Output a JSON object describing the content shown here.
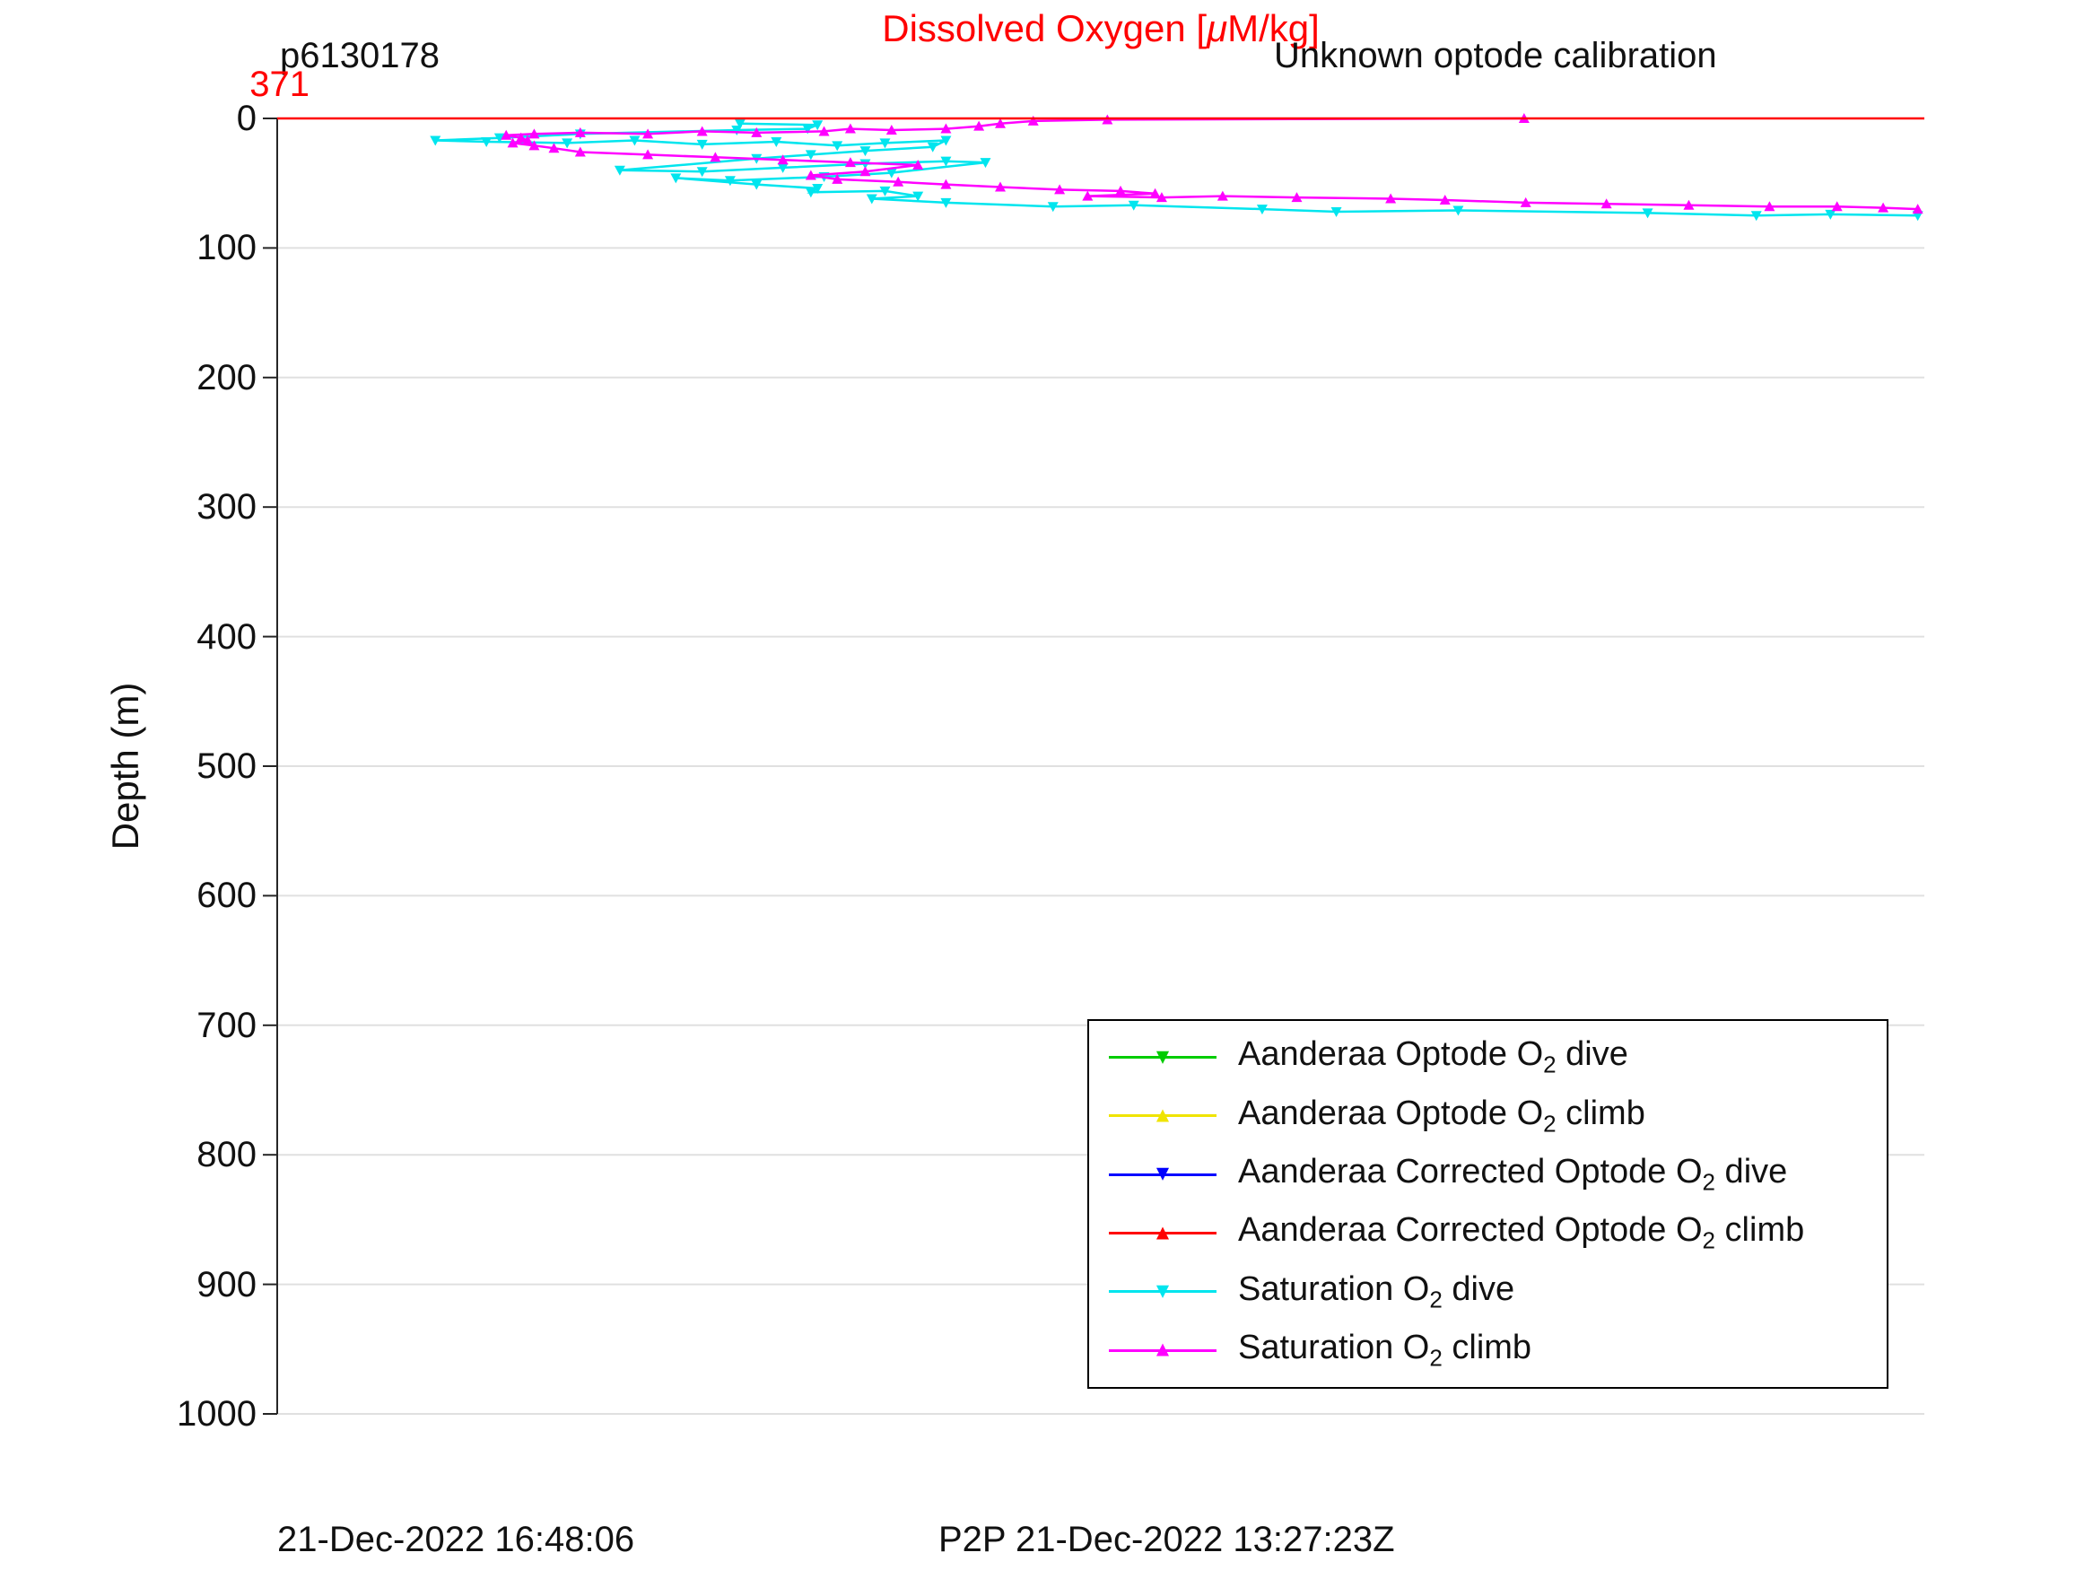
{
  "header": {
    "platform_id": "p6130178",
    "title_pre": "Dissolved Oxygen [",
    "title_mu": "μ",
    "title_post": "M/kg]",
    "calibration_note": "Unknown optode calibration",
    "surface_value_annotation": "371"
  },
  "axes": {
    "ylabel": "Depth (m)",
    "yticks": [
      0,
      100,
      200,
      300,
      400,
      500,
      600,
      700,
      800,
      900,
      1000
    ],
    "ylim": [
      0,
      1000
    ],
    "y_inverted": true,
    "x_tick_labels_visible": false
  },
  "footer": {
    "left_timestamp": "21-Dec-2022 16:48:06",
    "right_timestamp": "P2P 21-Dec-2022 13:27:23Z"
  },
  "colors": {
    "title": "#ff0000",
    "annotation": "#ff0000",
    "grid": "#e0e0e0",
    "axis": "#262626",
    "green": "#00cc00",
    "yellow": "#f0e400",
    "blue": "#0000ff",
    "red": "#ff0000",
    "cyan": "#00e5ee",
    "magenta": "#ff00ff"
  },
  "legend": {
    "entries": [
      {
        "pre": "Aanderaa Optode O",
        "sub": "2",
        "post": " dive",
        "color": "#00cc00",
        "marker": "down"
      },
      {
        "pre": "Aanderaa Optode O",
        "sub": "2",
        "post": " climb",
        "color": "#f0e400",
        "marker": "up"
      },
      {
        "pre": "Aanderaa Corrected Optode O",
        "sub": "2",
        "post": " dive",
        "color": "#0000ff",
        "marker": "down"
      },
      {
        "pre": "Aanderaa Corrected Optode O",
        "sub": "2",
        "post": " climb",
        "color": "#ff0000",
        "marker": "up"
      },
      {
        "pre": "Saturation O",
        "sub": "2",
        "post": " dive",
        "color": "#00e5ee",
        "marker": "down"
      },
      {
        "pre": "Saturation O",
        "sub": "2",
        "post": " climb",
        "color": "#ff00ff",
        "marker": "up"
      }
    ]
  },
  "chart_data": {
    "type": "line",
    "title": "Dissolved Oxygen [μM/kg]",
    "ylabel": "Depth (m)",
    "ylim": [
      0,
      1000
    ],
    "y_inverted": true,
    "grid": "horizontal only",
    "legend_position": "inside bottom-right",
    "x_axis_note": "no x tick labels visible; x stored as fraction of plot width (dissolved oxygen increases to the right); red annotation 371 shown at top-left",
    "series": [
      {
        "name": "Aanderaa Optode O2 dive",
        "color": "#00cc00",
        "marker": "down",
        "points": []
      },
      {
        "name": "Aanderaa Optode O2 climb",
        "color": "#f0e400",
        "marker": "up",
        "points": []
      },
      {
        "name": "Aanderaa Corrected Optode O2 dive",
        "color": "#0000ff",
        "marker": "down",
        "points": []
      },
      {
        "name": "Saturation O2 dive",
        "color": "#00e5ee",
        "marker": "down",
        "points": [
          [
            0.281,
            4
          ],
          [
            0.328,
            5
          ],
          [
            0.322,
            8
          ],
          [
            0.279,
            9
          ],
          [
            0.184,
            12
          ],
          [
            0.135,
            15
          ],
          [
            0.096,
            17
          ],
          [
            0.127,
            18
          ],
          [
            0.176,
            19
          ],
          [
            0.217,
            17
          ],
          [
            0.258,
            20
          ],
          [
            0.303,
            18
          ],
          [
            0.34,
            21
          ],
          [
            0.369,
            19
          ],
          [
            0.406,
            17
          ],
          [
            0.398,
            22
          ],
          [
            0.357,
            25
          ],
          [
            0.324,
            28
          ],
          [
            0.291,
            31
          ],
          [
            0.208,
            40
          ],
          [
            0.258,
            41
          ],
          [
            0.307,
            38
          ],
          [
            0.357,
            35
          ],
          [
            0.406,
            33
          ],
          [
            0.43,
            34
          ],
          [
            0.373,
            42
          ],
          [
            0.332,
            45
          ],
          [
            0.275,
            48
          ],
          [
            0.242,
            46
          ],
          [
            0.291,
            51
          ],
          [
            0.328,
            54
          ],
          [
            0.324,
            57
          ],
          [
            0.369,
            56
          ],
          [
            0.389,
            60
          ],
          [
            0.361,
            62
          ],
          [
            0.406,
            65
          ],
          [
            0.471,
            68
          ],
          [
            0.52,
            67
          ],
          [
            0.598,
            70
          ],
          [
            0.643,
            72
          ],
          [
            0.717,
            71
          ],
          [
            0.832,
            73
          ],
          [
            0.898,
            75
          ],
          [
            0.943,
            74
          ],
          [
            0.996,
            75
          ]
        ]
      },
      {
        "name": "Saturation O2 climb",
        "color": "#ff00ff",
        "marker": "up",
        "points": [
          [
            0.996,
            70
          ],
          [
            0.975,
            69
          ],
          [
            0.947,
            68
          ],
          [
            0.906,
            68
          ],
          [
            0.857,
            67
          ],
          [
            0.807,
            66
          ],
          [
            0.758,
            65
          ],
          [
            0.709,
            63
          ],
          [
            0.676,
            62
          ],
          [
            0.619,
            61
          ],
          [
            0.574,
            60
          ],
          [
            0.537,
            61
          ],
          [
            0.492,
            60
          ],
          [
            0.533,
            58
          ],
          [
            0.512,
            56
          ],
          [
            0.475,
            55
          ],
          [
            0.439,
            53
          ],
          [
            0.406,
            51
          ],
          [
            0.377,
            49
          ],
          [
            0.34,
            47
          ],
          [
            0.324,
            44
          ],
          [
            0.357,
            41
          ],
          [
            0.389,
            36
          ],
          [
            0.348,
            34
          ],
          [
            0.307,
            32
          ],
          [
            0.266,
            30
          ],
          [
            0.225,
            28
          ],
          [
            0.184,
            26
          ],
          [
            0.168,
            23
          ],
          [
            0.156,
            21
          ],
          [
            0.143,
            19
          ],
          [
            0.152,
            17
          ],
          [
            0.148,
            15
          ],
          [
            0.139,
            13
          ],
          [
            0.156,
            12
          ],
          [
            0.184,
            11
          ],
          [
            0.225,
            12
          ],
          [
            0.258,
            10
          ],
          [
            0.291,
            11
          ],
          [
            0.332,
            10
          ],
          [
            0.348,
            8
          ],
          [
            0.373,
            9
          ],
          [
            0.406,
            8
          ],
          [
            0.426,
            6
          ],
          [
            0.439,
            4
          ],
          [
            0.459,
            2
          ],
          [
            0.504,
            1
          ],
          [
            0.757,
            0
          ]
        ]
      },
      {
        "name": "Aanderaa Corrected Optode O2 climb",
        "color": "#ff0000",
        "marker": "none",
        "points": [
          [
            0,
            0
          ],
          [
            1,
            0
          ]
        ]
      }
    ]
  }
}
